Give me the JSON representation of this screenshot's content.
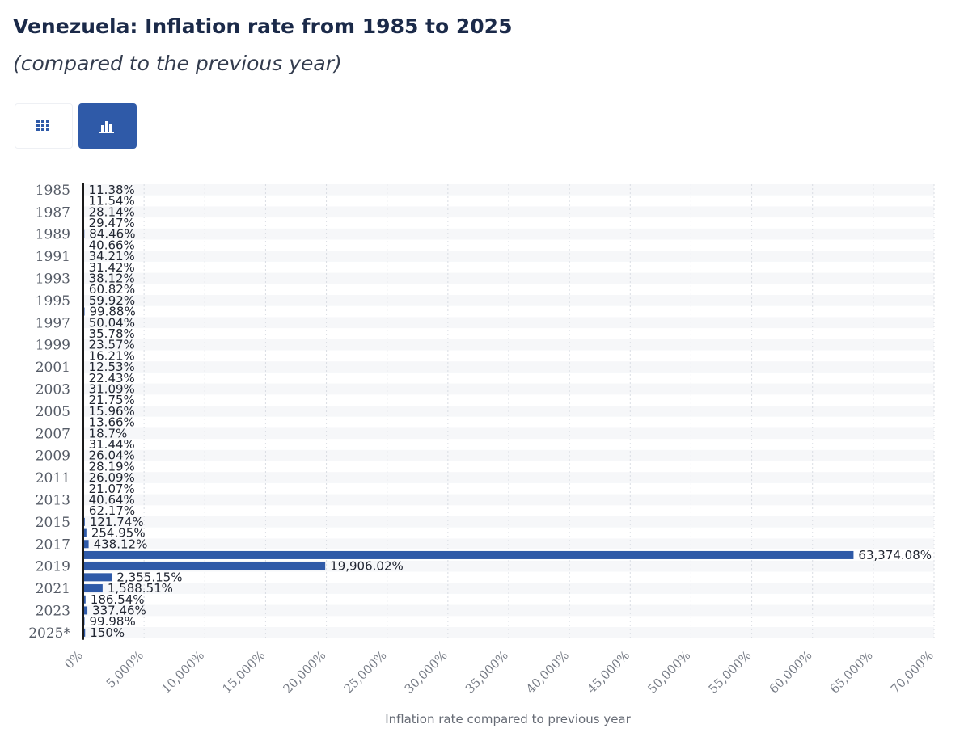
{
  "header": {
    "title": "Venezuela: Inflation rate from 1985 to 2025",
    "subtitle": "(compared to the previous year)"
  },
  "toolbar": {
    "table_icon": "grid-icon",
    "chart_icon": "bar-chart-icon",
    "active": "chart"
  },
  "colors": {
    "bar": "#2f5aa8",
    "gridline": "#d9dde3",
    "band": "#f6f7f9",
    "axis": "#1a1a1a"
  },
  "chart_data": {
    "type": "bar",
    "orientation": "horizontal",
    "title": "Venezuela: Inflation rate from 1985 to 2025",
    "subtitle": "(compared to the previous year)",
    "xlabel": "Inflation rate compared to previous year",
    "ylabel": "",
    "xlim": [
      0,
      70000
    ],
    "grid": true,
    "legend": "none",
    "xticks": [
      0,
      5000,
      10000,
      15000,
      20000,
      25000,
      30000,
      35000,
      40000,
      45000,
      50000,
      55000,
      60000,
      65000,
      70000
    ],
    "xtick_labels": [
      "0%",
      "5,000%",
      "10,000%",
      "15,000%",
      "20,000%",
      "25,000%",
      "30,000%",
      "35,000%",
      "40,000%",
      "45,000%",
      "50,000%",
      "55,000%",
      "60,000%",
      "65,000%",
      "70,000%"
    ],
    "categories": [
      "1985",
      "1986",
      "1987",
      "1988",
      "1989",
      "1990",
      "1991",
      "1992",
      "1993",
      "1994",
      "1995",
      "1996",
      "1997",
      "1998",
      "1999",
      "2000",
      "2001",
      "2002",
      "2003",
      "2004",
      "2005",
      "2006",
      "2007",
      "2008",
      "2009",
      "2010",
      "2011",
      "2012",
      "2013",
      "2014",
      "2015",
      "2016",
      "2017",
      "2018",
      "2019",
      "2020",
      "2021",
      "2022",
      "2023",
      "2024",
      "2025*"
    ],
    "shown_category_labels": [
      "1985",
      "1987",
      "1989",
      "1991",
      "1993",
      "1995",
      "1997",
      "1999",
      "2001",
      "2003",
      "2005",
      "2007",
      "2009",
      "2011",
      "2013",
      "2015",
      "2017",
      "2019",
      "2021",
      "2023",
      "2025*"
    ],
    "values": [
      11.38,
      11.54,
      28.14,
      29.47,
      84.46,
      40.66,
      34.21,
      31.42,
      38.12,
      60.82,
      59.92,
      99.88,
      50.04,
      35.78,
      23.57,
      16.21,
      12.53,
      22.43,
      31.09,
      21.75,
      15.96,
      13.66,
      18.7,
      31.44,
      26.04,
      28.19,
      26.09,
      21.07,
      40.64,
      62.17,
      121.74,
      254.95,
      438.12,
      63374.08,
      19906.02,
      2355.15,
      1588.51,
      186.54,
      337.46,
      99.98,
      150
    ],
    "value_labels": [
      "11.38%",
      "11.54%",
      "28.14%",
      "29.47%",
      "84.46%",
      "40.66%",
      "34.21%",
      "31.42%",
      "38.12%",
      "60.82%",
      "59.92%",
      "99.88%",
      "50.04%",
      "35.78%",
      "23.57%",
      "16.21%",
      "12.53%",
      "22.43%",
      "31.09%",
      "21.75%",
      "15.96%",
      "13.66%",
      "18.7%",
      "31.44%",
      "26.04%",
      "28.19%",
      "26.09%",
      "21.07%",
      "40.64%",
      "62.17%",
      "121.74%",
      "254.95%",
      "438.12%",
      "63,374.08%",
      "19,906.02%",
      "2,355.15%",
      "1,588.51%",
      "186.54%",
      "337.46%",
      "99.98%",
      "150%"
    ]
  }
}
